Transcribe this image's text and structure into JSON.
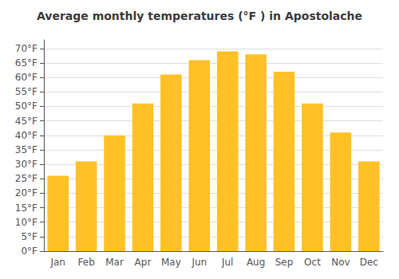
{
  "chart_data": {
    "type": "bar",
    "title": "Average monthly temperatures (°F ) in Apostolache",
    "categories": [
      "Jan",
      "Feb",
      "Mar",
      "Apr",
      "May",
      "Jun",
      "Jul",
      "Aug",
      "Sep",
      "Oct",
      "Nov",
      "Dec"
    ],
    "values": [
      26,
      31,
      40,
      51,
      61,
      66,
      69,
      68,
      62,
      51,
      41,
      31
    ],
    "color": "#FFC125",
    "ylim": [
      0,
      73
    ],
    "yticks": [
      {
        "value": 0,
        "label": "0°F"
      },
      {
        "value": 5,
        "label": "5°F"
      },
      {
        "value": 10,
        "label": "10°F"
      },
      {
        "value": 15,
        "label": "15°F"
      },
      {
        "value": 20,
        "label": "20°F"
      },
      {
        "value": 25,
        "label": "25°F"
      },
      {
        "value": 30,
        "label": "30°F"
      },
      {
        "value": 35,
        "label": "35°F"
      },
      {
        "value": 40,
        "label": "40°F"
      },
      {
        "value": 45,
        "label": "45°F"
      },
      {
        "value": 50,
        "label": "50°F"
      },
      {
        "value": 55,
        "label": "55°F"
      },
      {
        "value": 60,
        "label": "60°F"
      },
      {
        "value": 65,
        "label": "65°F"
      },
      {
        "value": 70,
        "label": "70°F"
      }
    ],
    "grid": true
  }
}
